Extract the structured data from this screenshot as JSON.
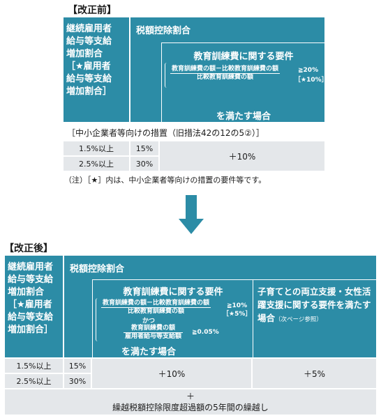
{
  "before": {
    "title": "【改正前】",
    "left_header": [
      "継続雇用者",
      "給与等支給",
      "増加割合",
      "［★雇用者",
      "給与等支給",
      "増加割合］"
    ],
    "rate_header": "税額控除割合",
    "req_title": "教育訓練費に関する要件",
    "req_numerator": "教育訓練費の額－比較教育訓練費の額",
    "req_denominator": "比較教育訓練費の額",
    "req_threshold": "≧20%",
    "req_threshold_star": "［★10%］",
    "req_footer": "を満たす場合",
    "sme_note": "［中小企業者等向けの措置（旧措法42の12の5②）］",
    "rows": [
      {
        "ratio": "1.5%以上",
        "rate": "15%"
      },
      {
        "ratio": "2.5%以上",
        "rate": "30%"
      }
    ],
    "add_rate": "＋10%",
    "footnote": "（注）［★］内は、中小企業者等向けの措置の要件等です。"
  },
  "after": {
    "title": "【改正後】",
    "left_header": [
      "継続雇用者",
      "給与等支給",
      "増加割合",
      "［★雇用者",
      "給与等支給",
      "増加割合］"
    ],
    "rate_header": "税額控除割合",
    "req_title": "教育訓練費に関する要件",
    "req_numerator": "教育訓練費の額－比較教育訓練費の額",
    "req_denominator": "比較教育訓練費の額",
    "req_threshold": "≧10%",
    "req_threshold_star": "［★5%］",
    "req_and": "かつ",
    "req2_numerator": "教育訓練費の額",
    "req2_denominator": "雇用者給与等支給額",
    "req2_threshold": "≧0.05%",
    "req_footer": "を満たす場合",
    "childcare_req_main": "子育てとの両立支援・女性活躍支援に関する要件を満たす場合",
    "childcare_req_note": "（次ページ参照）",
    "rows": [
      {
        "ratio": "1.5%以上",
        "rate": "15%"
      },
      {
        "ratio": "2.5%以上",
        "rate": "30%"
      }
    ],
    "add_rate_edu": "＋10%",
    "add_rate_childcare": "＋5%",
    "carryover_plus": "＋",
    "carryover": "繰越税額控除限度超過額の5年間の繰越し"
  },
  "colors": {
    "teal": "#2c8ca6",
    "light_gray": "#e4e7ea"
  }
}
